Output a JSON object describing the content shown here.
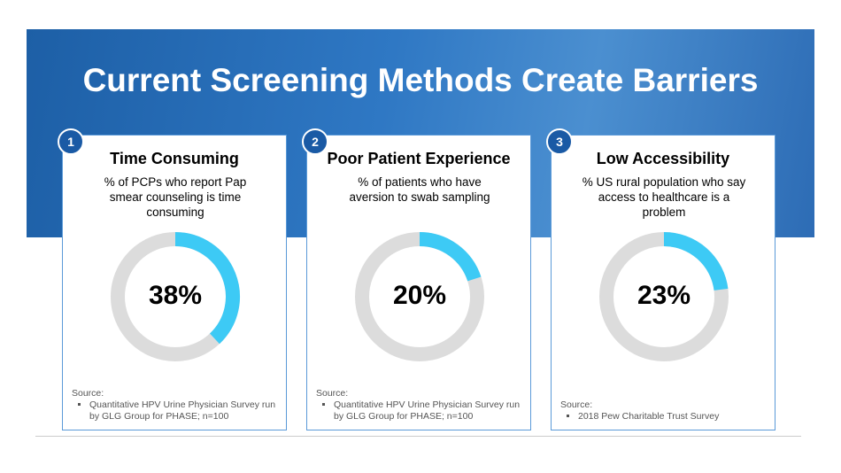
{
  "title": "Current Screening Methods Create Barriers",
  "chart_data": [
    {
      "type": "donut",
      "badge": "1",
      "title": "Time Consuming",
      "subtitle": "% of PCPs who report Pap smear counseling is time consuming",
      "values": [
        38
      ],
      "value_labels": [
        "38%"
      ],
      "color": "#3dcaf5",
      "source_heading": "Source:",
      "source": "Quantitative HPV Urine Physician Survey run by GLG Group for PHASE; n=100"
    },
    {
      "type": "donut",
      "badge": "2",
      "title": "Poor Patient Experience",
      "subtitle": "% of patients who have aversion to swab sampling",
      "values": [
        20
      ],
      "value_labels": [
        "20%"
      ],
      "color": "#3dcaf5",
      "source_heading": "Source:",
      "source": "Quantitative HPV Urine Physician Survey run by GLG Group for PHASE; n=100"
    },
    {
      "type": "donut",
      "badge": "3",
      "title": "Low Accessibility",
      "subtitle": "% US rural population who say access to healthcare is a problem",
      "values": [
        23
      ],
      "value_labels": [
        "23%"
      ],
      "color": "#3dcaf5",
      "source_heading": "Source:",
      "source": "2018 Pew Charitable Trust Survey"
    }
  ]
}
